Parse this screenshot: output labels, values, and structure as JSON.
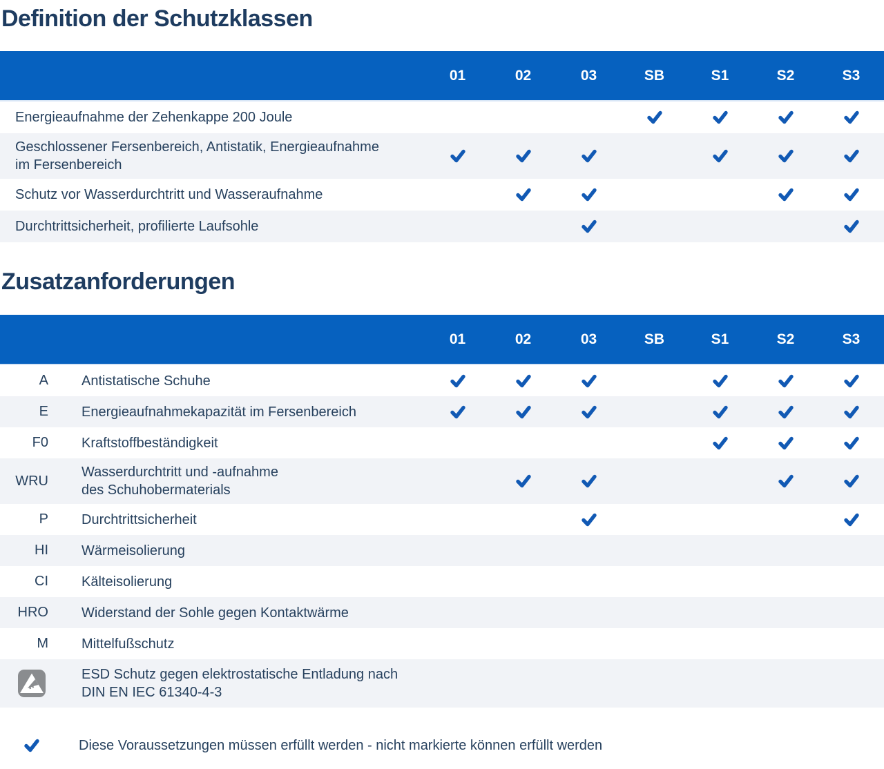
{
  "colors": {
    "header_blue": "#0661BF",
    "check_blue": "#1159B4",
    "row_alt": "#F1F3F7",
    "title_text": "#1E3C60",
    "body_text": "#27415E",
    "icon_gray": "#8A8C8F"
  },
  "columns": [
    "01",
    "02",
    "03",
    "SB",
    "S1",
    "S2",
    "S3"
  ],
  "section1": {
    "title": "Definition der Schutzklassen",
    "rows": [
      {
        "label": "Energieaufnahme der Zehenkappe 200 Joule",
        "checks": [
          0,
          0,
          0,
          1,
          1,
          1,
          1
        ]
      },
      {
        "label": "Geschlossener Fersenbereich, Antistatik, Energieaufnahme\nim Fersenbereich",
        "checks": [
          1,
          1,
          1,
          0,
          1,
          1,
          1
        ]
      },
      {
        "label": "Schutz vor Wasserdurchtritt und Wasseraufnahme",
        "checks": [
          0,
          1,
          1,
          0,
          0,
          1,
          1
        ]
      },
      {
        "label": "Durchtrittsicherheit, profilierte Laufsohle",
        "checks": [
          0,
          0,
          1,
          0,
          0,
          0,
          1
        ]
      }
    ]
  },
  "section2": {
    "title": "Zusatzanforderungen",
    "rows": [
      {
        "code": "A",
        "label": "Antistatische Schuhe",
        "checks": [
          1,
          1,
          1,
          0,
          1,
          1,
          1
        ]
      },
      {
        "code": "E",
        "label": "Energieaufnahmekapazität im Fersenbereich",
        "checks": [
          1,
          1,
          1,
          0,
          1,
          1,
          1
        ]
      },
      {
        "code": "F0",
        "label": "Kraftstoffbeständigkeit",
        "checks": [
          0,
          0,
          0,
          0,
          1,
          1,
          1
        ]
      },
      {
        "code": "WRU",
        "label": "Wasserdurchtritt und -aufnahme\ndes Schuhobermaterials",
        "checks": [
          0,
          1,
          1,
          0,
          0,
          1,
          1
        ]
      },
      {
        "code": "P",
        "label": "Durchtrittsicherheit",
        "checks": [
          0,
          0,
          1,
          0,
          0,
          0,
          1
        ]
      },
      {
        "code": "HI",
        "label": "Wärmeisolierung",
        "checks": [
          0,
          0,
          0,
          0,
          0,
          0,
          0
        ]
      },
      {
        "code": "CI",
        "label": "Kälteisolierung",
        "checks": [
          0,
          0,
          0,
          0,
          0,
          0,
          0
        ]
      },
      {
        "code": "HRO",
        "label": "Widerstand der Sohle gegen Kontaktwärme",
        "checks": [
          0,
          0,
          0,
          0,
          0,
          0,
          0
        ]
      },
      {
        "code": "M",
        "label": "Mittelfußschutz",
        "checks": [
          0,
          0,
          0,
          0,
          0,
          0,
          0
        ]
      },
      {
        "code": "",
        "icon": "esd-icon",
        "label": "ESD Schutz gegen elektrostatische Entladung nach\nDIN EN IEC 61340-4-3",
        "checks": [
          0,
          0,
          0,
          0,
          0,
          0,
          0
        ]
      }
    ]
  },
  "legend": {
    "icon": "check-icon",
    "text": "Diese Voraussetzungen müssen erfüllt werden - nicht markierte können erfüllt werden"
  }
}
